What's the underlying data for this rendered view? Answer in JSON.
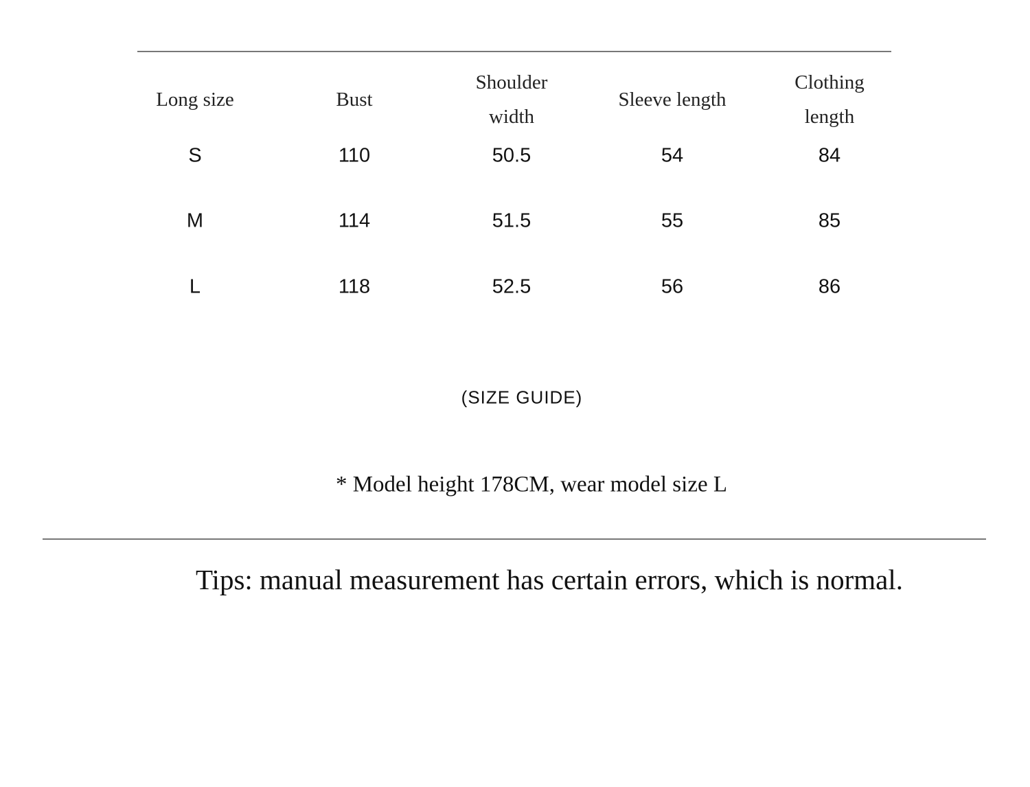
{
  "table": {
    "headers": [
      "Long size",
      "Bust",
      "Shoulder width",
      "Sleeve length",
      "Clothing length"
    ],
    "rows": [
      [
        "S",
        110,
        50.5,
        54,
        84
      ],
      [
        "M",
        114,
        51.5,
        55,
        85
      ],
      [
        "L",
        118,
        52.5,
        56,
        86
      ]
    ]
  },
  "caption": "(SIZE GUIDE)",
  "note": "* Model height 178CM, wear model size L",
  "tips": "Tips: manual measurement has certain errors, which is normal."
}
